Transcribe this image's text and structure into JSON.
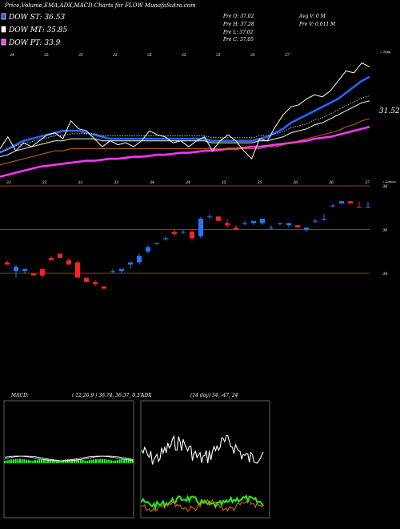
{
  "header": {
    "title": "Price,Volume,EMA,ADX,MACD Charts for FLOW MunafaSutra.com"
  },
  "legend": [
    {
      "label": "DOW ST: 36.53",
      "color": "#2255dd"
    },
    {
      "label": "DOW MT: 35.85",
      "color": "#ffffff"
    },
    {
      "label": "DOW PT: 33.9",
      "color": "#ff33ff"
    }
  ],
  "ohlc": {
    "pre_o": "Pre   O: 37.02",
    "pre_h": "Pre   H: 37.28",
    "pre_l": "Pre   L: 37.02",
    "pre_c": "Pre   C: 37.05",
    "avg_v": "Avg V: 0   M",
    "pre_v": "Pre   V: 0.011 M"
  },
  "top_chart": {
    "side_label": "« Topa",
    "price_label": "31.52",
    "top_labels": [
      "34",
      "35",
      "35",
      "35",
      "35",
      "35",
      "35",
      "35",
      "37"
    ],
    "bottom_labels": [
      "33",
      "33",
      "33",
      "33",
      "34",
      "34",
      "35",
      "35",
      "36",
      "36",
      "37"
    ]
  },
  "candle_chart": {
    "side_label": "« Lowes",
    "price_levels": [
      "38",
      "36",
      "34"
    ]
  },
  "macd": {
    "label": "MACD:",
    "values": "( 12,26,9 ) 36.74,  36.37,  0.37"
  },
  "adx": {
    "label": "ADX",
    "values": "(14  day) 54,  -47,  24"
  },
  "chart_data": {
    "type": "candlestick",
    "y_levels": [
      38,
      36,
      34
    ],
    "candles": [
      {
        "o": 34.5,
        "h": 34.6,
        "l": 34.4,
        "c": 34.4
      },
      {
        "o": 34.1,
        "h": 34.4,
        "l": 33.8,
        "c": 34.3
      },
      {
        "o": 34.1,
        "h": 34.2,
        "l": 34.0,
        "c": 34.2
      },
      {
        "o": 34.0,
        "h": 34.0,
        "l": 33.9,
        "c": 33.9
      },
      {
        "o": 34.2,
        "h": 34.2,
        "l": 33.8,
        "c": 33.9
      },
      {
        "o": 34.7,
        "h": 34.8,
        "l": 34.6,
        "c": 34.6
      },
      {
        "o": 34.9,
        "h": 34.9,
        "l": 34.7,
        "c": 34.7
      },
      {
        "o": 34.6,
        "h": 34.7,
        "l": 34.4,
        "c": 34.4
      },
      {
        "o": 34.5,
        "h": 34.6,
        "l": 33.8,
        "c": 33.8
      },
      {
        "o": 33.8,
        "h": 33.8,
        "l": 33.6,
        "c": 33.6
      },
      {
        "o": 33.6,
        "h": 33.7,
        "l": 33.4,
        "c": 33.5
      },
      {
        "o": 33.4,
        "h": 33.4,
        "l": 33.3,
        "c": 33.3
      },
      {
        "o": 34.1,
        "h": 34.2,
        "l": 34.0,
        "c": 34.1
      },
      {
        "o": 34.1,
        "h": 34.2,
        "l": 34.0,
        "c": 34.2
      },
      {
        "o": 34.4,
        "h": 34.5,
        "l": 34.2,
        "c": 34.5
      },
      {
        "o": 34.5,
        "h": 34.9,
        "l": 34.4,
        "c": 34.8
      },
      {
        "o": 35.0,
        "h": 35.3,
        "l": 34.9,
        "c": 35.2
      },
      {
        "o": 35.4,
        "h": 35.4,
        "l": 35.3,
        "c": 35.4
      },
      {
        "o": 35.6,
        "h": 35.7,
        "l": 35.5,
        "c": 35.6
      },
      {
        "o": 35.9,
        "h": 36.0,
        "l": 35.7,
        "c": 35.8
      },
      {
        "o": 35.9,
        "h": 36.0,
        "l": 35.8,
        "c": 35.9
      },
      {
        "o": 35.9,
        "h": 36.0,
        "l": 35.5,
        "c": 35.6
      },
      {
        "o": 35.7,
        "h": 36.6,
        "l": 35.6,
        "c": 36.5
      },
      {
        "o": 36.6,
        "h": 36.7,
        "l": 36.5,
        "c": 36.6
      },
      {
        "o": 36.6,
        "h": 36.6,
        "l": 36.4,
        "c": 36.4
      },
      {
        "o": 36.3,
        "h": 36.5,
        "l": 36.1,
        "c": 36.2
      },
      {
        "o": 36.1,
        "h": 36.2,
        "l": 36.0,
        "c": 36.0
      },
      {
        "o": 36.3,
        "h": 36.4,
        "l": 36.2,
        "c": 36.3
      },
      {
        "o": 36.3,
        "h": 36.4,
        "l": 36.2,
        "c": 36.4
      },
      {
        "o": 36.3,
        "h": 36.5,
        "l": 36.2,
        "c": 36.5
      },
      {
        "o": 36.1,
        "h": 36.2,
        "l": 36.0,
        "c": 36.1
      },
      {
        "o": 36.3,
        "h": 36.3,
        "l": 36.2,
        "c": 36.3
      },
      {
        "o": 36.2,
        "h": 36.3,
        "l": 36.1,
        "c": 36.3
      },
      {
        "o": 36.2,
        "h": 36.2,
        "l": 36.1,
        "c": 36.1
      },
      {
        "o": 36.0,
        "h": 36.1,
        "l": 35.9,
        "c": 36.1
      },
      {
        "o": 36.4,
        "h": 36.5,
        "l": 36.3,
        "c": 36.4
      },
      {
        "o": 36.5,
        "h": 36.7,
        "l": 36.4,
        "c": 36.5
      },
      {
        "o": 37.1,
        "h": 37.2,
        "l": 37.0,
        "c": 37.1
      },
      {
        "o": 37.2,
        "h": 37.3,
        "l": 37.2,
        "c": 37.3
      },
      {
        "o": 37.3,
        "h": 37.3,
        "l": 37.2,
        "c": 37.2
      },
      {
        "o": 37.05,
        "h": 37.28,
        "l": 37.02,
        "c": 37.02
      },
      {
        "o": 37.02,
        "h": 37.28,
        "l": 37.02,
        "c": 37.05
      }
    ],
    "lines": {
      "price": [
        32.2,
        32.8,
        32.1,
        32.5,
        32.3,
        32.6,
        32.9,
        33.0,
        32.7,
        33.6,
        33.2,
        33.1,
        32.7,
        32.3,
        32.6,
        32.4,
        32.5,
        32.3,
        32.6,
        33.1,
        32.9,
        32.8,
        32.5,
        32.6,
        32.3,
        32.6,
        32.8,
        32.1,
        32.6,
        32.9,
        32.6,
        32.1,
        31.7,
        32.7,
        32.6,
        33.3,
        33.9,
        34.3,
        34.4,
        34.7,
        34.9,
        34.8,
        35.1,
        35.6,
        36.1,
        36.0,
        36.5,
        36.3
      ],
      "ema_st": [
        32.0,
        32.2,
        32.4,
        32.6,
        32.7,
        32.8,
        32.9,
        33.0,
        33.1,
        33.1,
        33.1,
        33.0,
        32.9,
        32.8,
        32.7,
        32.7,
        32.7,
        32.7,
        32.7,
        32.7,
        32.7,
        32.7,
        32.7,
        32.7,
        32.7,
        32.7,
        32.7,
        32.6,
        32.6,
        32.6,
        32.6,
        32.6,
        32.6,
        32.7,
        32.8,
        33.0,
        33.2,
        33.5,
        33.7,
        33.9,
        34.1,
        34.3,
        34.5,
        34.7,
        35.0,
        35.3,
        35.6,
        35.8
      ],
      "ema_mt": [
        31.8,
        31.9,
        32.1,
        32.2,
        32.3,
        32.4,
        32.5,
        32.6,
        32.6,
        32.7,
        32.7,
        32.7,
        32.7,
        32.6,
        32.6,
        32.6,
        32.6,
        32.6,
        32.6,
        32.6,
        32.6,
        32.6,
        32.6,
        32.6,
        32.6,
        32.6,
        32.6,
        32.5,
        32.5,
        32.5,
        32.5,
        32.5,
        32.5,
        32.6,
        32.6,
        32.7,
        32.8,
        33.0,
        33.1,
        33.2,
        33.4,
        33.5,
        33.7,
        33.9,
        34.1,
        34.3,
        34.5,
        34.6
      ],
      "ema_lt": [
        31.4,
        31.5,
        31.6,
        31.7,
        31.8,
        31.9,
        32.0,
        32.1,
        32.1,
        32.2,
        32.2,
        32.2,
        32.2,
        32.2,
        32.2,
        32.2,
        32.2,
        32.2,
        32.2,
        32.2,
        32.2,
        32.2,
        32.2,
        32.2,
        32.2,
        32.2,
        32.2,
        32.2,
        32.2,
        32.2,
        32.2,
        32.2,
        32.2,
        32.2,
        32.3,
        32.3,
        32.4,
        32.5,
        32.6,
        32.7,
        32.8,
        32.9,
        33.0,
        33.1,
        33.3,
        33.4,
        33.6,
        33.7
      ],
      "ema_pt": [
        30.8,
        30.9,
        31.0,
        31.1,
        31.2,
        31.3,
        31.35,
        31.4,
        31.45,
        31.5,
        31.55,
        31.6,
        31.6,
        31.65,
        31.7,
        31.7,
        31.75,
        31.8,
        31.8,
        31.85,
        31.9,
        31.9,
        31.95,
        32.0,
        32.0,
        32.05,
        32.1,
        32.1,
        32.15,
        32.2,
        32.2,
        32.25,
        32.3,
        32.3,
        32.35,
        32.4,
        32.45,
        32.5,
        32.55,
        32.6,
        32.7,
        32.75,
        32.8,
        32.9,
        33.0,
        33.1,
        33.2,
        33.3
      ]
    }
  }
}
